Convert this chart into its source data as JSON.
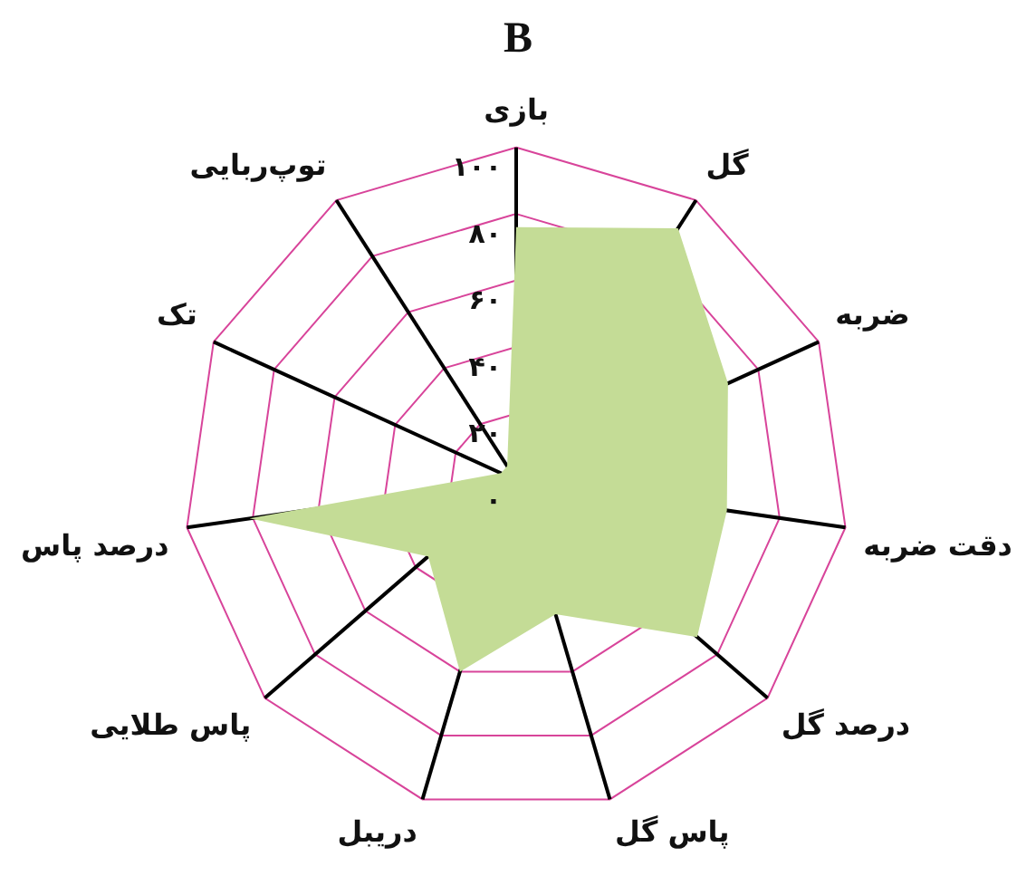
{
  "chart_data": {
    "type": "radar",
    "title": "B",
    "categories": [
      "بازی",
      "گل",
      "ضربه",
      "دقت ضربه",
      "درصد گل",
      "پاس گل",
      "دریبل",
      "پاس طلایی",
      "درصد پاس",
      "تک",
      "توپ‌ربایی"
    ],
    "series": [
      {
        "color": "#c4dc96",
        "values": [
          76,
          90,
          70,
          64,
          72,
          42,
          60,
          35,
          81,
          5,
          5
        ]
      }
    ],
    "ylim": [
      0,
      100
    ],
    "yticks": [
      {
        "value": 0,
        "label": "۰"
      },
      {
        "value": 20,
        "label": "۲۰"
      },
      {
        "value": 40,
        "label": "۴۰"
      },
      {
        "value": 60,
        "label": "۶۰"
      },
      {
        "value": 80,
        "label": "۸۰"
      },
      {
        "value": 100,
        "label": "۱۰۰"
      }
    ],
    "grid": true,
    "legend": false,
    "marker": "none"
  }
}
